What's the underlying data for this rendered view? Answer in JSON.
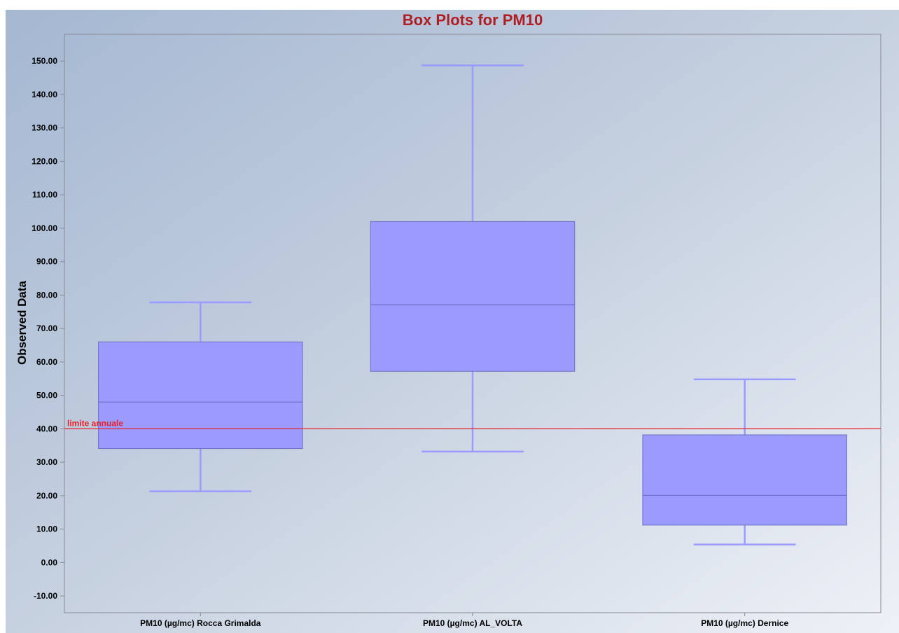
{
  "chart_data": {
    "type": "box",
    "title": "Box Plots for PM10",
    "ylabel": "Observed Data",
    "xlabel": "",
    "ylim": [
      -15,
      158
    ],
    "y_ticks": [
      -10,
      0,
      10,
      20,
      30,
      40,
      50,
      60,
      70,
      80,
      90,
      100,
      110,
      120,
      130,
      140,
      150
    ],
    "y_tick_format": "2 decimals",
    "grid": false,
    "categories": [
      "PM10  (µg/mc) Rocca Grimalda",
      "PM10  (µg/mc) AL_VOLTA",
      "PM10  (µg/mc) Dernice"
    ],
    "boxes": [
      {
        "min": 21.3,
        "q1": 34.1,
        "median": 48.0,
        "q3": 66.0,
        "max": 77.8
      },
      {
        "min": 33.2,
        "q1": 57.2,
        "median": 77.1,
        "q3": 102.0,
        "max": 148.7
      },
      {
        "min": 5.4,
        "q1": 11.2,
        "median": 20.1,
        "q3": 38.2,
        "max": 54.8
      }
    ],
    "reference_line": {
      "value": 40,
      "label": "limite annuale",
      "color": "#e8202a"
    },
    "colors": {
      "box_fill": "#9a9aff",
      "box_stroke": "#6e6ec8",
      "whisker": "#9a9aff",
      "title": "#b01e24",
      "axis": "#8a8a96"
    }
  }
}
